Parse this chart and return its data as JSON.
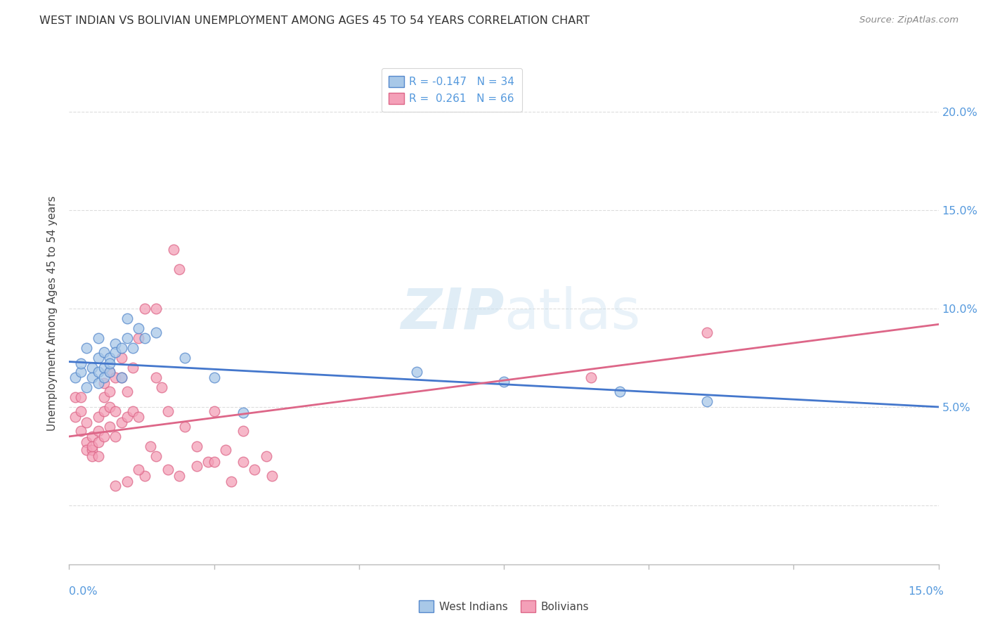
{
  "title": "WEST INDIAN VS BOLIVIAN UNEMPLOYMENT AMONG AGES 45 TO 54 YEARS CORRELATION CHART",
  "source": "Source: ZipAtlas.com",
  "ylabel": "Unemployment Among Ages 45 to 54 years",
  "right_ytick_labels": [
    "20.0%",
    "15.0%",
    "10.0%",
    "5.0%"
  ],
  "right_ytick_vals": [
    0.2,
    0.15,
    0.1,
    0.05
  ],
  "xlim": [
    0.0,
    0.15
  ],
  "ylim": [
    -0.03,
    0.225
  ],
  "legend_label1": "R = -0.147   N = 34",
  "legend_label2": "R =  0.261   N = 66",
  "legend_bottom1": "West Indians",
  "legend_bottom2": "Bolivians",
  "color_blue": "#a8c8e8",
  "color_pink": "#f4a0b8",
  "color_blue_edge": "#5588cc",
  "color_pink_edge": "#dd6688",
  "color_blue_line": "#4477cc",
  "color_pink_line": "#dd6688",
  "watermark_color": "#ddeeff",
  "axis_color": "#5599dd",
  "grid_color": "#dddddd",
  "title_color": "#333333",
  "source_color": "#888888",
  "background_color": "#ffffff",
  "west_indians_x": [
    0.001,
    0.002,
    0.002,
    0.003,
    0.003,
    0.004,
    0.004,
    0.005,
    0.005,
    0.005,
    0.005,
    0.006,
    0.006,
    0.006,
    0.007,
    0.007,
    0.007,
    0.008,
    0.008,
    0.009,
    0.009,
    0.01,
    0.01,
    0.011,
    0.012,
    0.013,
    0.015,
    0.02,
    0.025,
    0.03,
    0.06,
    0.075,
    0.095,
    0.11
  ],
  "west_indians_y": [
    0.065,
    0.068,
    0.072,
    0.06,
    0.08,
    0.07,
    0.065,
    0.085,
    0.068,
    0.075,
    0.062,
    0.07,
    0.065,
    0.078,
    0.075,
    0.068,
    0.072,
    0.082,
    0.078,
    0.08,
    0.065,
    0.095,
    0.085,
    0.08,
    0.09,
    0.085,
    0.088,
    0.075,
    0.065,
    0.047,
    0.068,
    0.063,
    0.058,
    0.053
  ],
  "bolivians_x": [
    0.001,
    0.001,
    0.002,
    0.002,
    0.002,
    0.003,
    0.003,
    0.003,
    0.004,
    0.004,
    0.004,
    0.004,
    0.005,
    0.005,
    0.005,
    0.005,
    0.006,
    0.006,
    0.006,
    0.006,
    0.007,
    0.007,
    0.007,
    0.007,
    0.008,
    0.008,
    0.008,
    0.009,
    0.009,
    0.009,
    0.01,
    0.01,
    0.011,
    0.011,
    0.012,
    0.012,
    0.013,
    0.014,
    0.015,
    0.015,
    0.016,
    0.017,
    0.018,
    0.019,
    0.02,
    0.022,
    0.024,
    0.025,
    0.027,
    0.03,
    0.03,
    0.032,
    0.034,
    0.035,
    0.025,
    0.028,
    0.022,
    0.019,
    0.017,
    0.015,
    0.013,
    0.012,
    0.01,
    0.008,
    0.11,
    0.09
  ],
  "bolivians_y": [
    0.055,
    0.045,
    0.038,
    0.055,
    0.048,
    0.042,
    0.032,
    0.028,
    0.035,
    0.028,
    0.025,
    0.03,
    0.045,
    0.032,
    0.038,
    0.025,
    0.062,
    0.048,
    0.055,
    0.035,
    0.068,
    0.058,
    0.05,
    0.04,
    0.065,
    0.048,
    0.035,
    0.075,
    0.065,
    0.042,
    0.058,
    0.045,
    0.07,
    0.048,
    0.085,
    0.045,
    0.1,
    0.03,
    0.1,
    0.065,
    0.06,
    0.048,
    0.13,
    0.12,
    0.04,
    0.03,
    0.022,
    0.048,
    0.028,
    0.038,
    0.022,
    0.018,
    0.025,
    0.015,
    0.022,
    0.012,
    0.02,
    0.015,
    0.018,
    0.025,
    0.015,
    0.018,
    0.012,
    0.01,
    0.088,
    0.065
  ],
  "wi_trend_x0": 0.0,
  "wi_trend_x1": 0.15,
  "wi_trend_y0": 0.073,
  "wi_trend_y1": 0.05,
  "bo_trend_x0": 0.0,
  "bo_trend_x1": 0.15,
  "bo_trend_y0": 0.035,
  "bo_trend_y1": 0.092
}
